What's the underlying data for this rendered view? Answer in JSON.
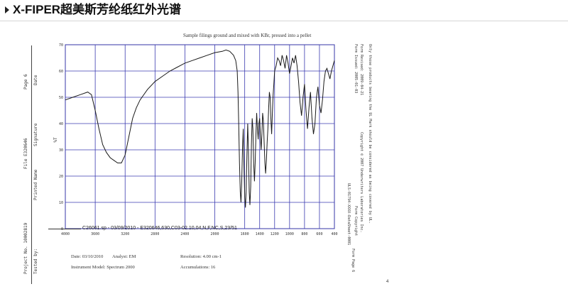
{
  "header": {
    "title": "X-FIPER超美斯芳纶纸红外光谱"
  },
  "doc": {
    "left_labels": {
      "page": "Page 6",
      "date": "Date",
      "file": "File E320646",
      "signature": "Signature",
      "printed_name": "Printed Name",
      "project_no": "Project No. 10002819",
      "tested_by": "Tested by:"
    },
    "right_labels": {
      "form_issued": "Form Issued: 2005-01-03",
      "form_revised": "Form Revised: 2009-04-21",
      "copyright": "Copyright © 2007 Underwriters Laboratories Inc.",
      "form_copyright": "Form Copyright",
      "form_code": "ULS-01794-XXXX-DataSheet-0001",
      "form_page": "Form Page 6",
      "note": "Only those products bearing the UL Mark should be considered as being covered by UL."
    },
    "legend": "C26061.sp - 03/09/2010 - E320646,630,C03-02.10,04,N,F,NC,S,23/51",
    "info": {
      "date": "Date: 03/10/2010",
      "analyst": "Analyst: EM",
      "resolution": "Resolution: 4.00 cm-1",
      "instrument": "Instrument Model: Spectrum 2000",
      "accumulations": "Accumulations: 16"
    },
    "ylabel": "%T",
    "page_mark": "4"
  },
  "chart_data": {
    "type": "line",
    "title": "Sample filings ground and mixed with KBr, pressed into a pellet",
    "xlabel": "",
    "ylabel": "%T",
    "xlim": [
      4000,
      400
    ],
    "ylim": [
      0,
      70
    ],
    "x_ticks": [
      4000,
      3600,
      3200,
      2800,
      2400,
      2000,
      1600,
      1400,
      1200,
      1000,
      800,
      600,
      400
    ],
    "y_ticks": [
      0,
      10,
      20,
      30,
      40,
      50,
      60,
      70
    ],
    "grid": true,
    "series": [
      {
        "name": "C26061.sp - 03/09/2010 - E320646,630,C03-02.10,04,N,F,NC,S,23/51",
        "x": [
          4000,
          3900,
          3800,
          3700,
          3650,
          3600,
          3550,
          3500,
          3450,
          3400,
          3350,
          3300,
          3250,
          3200,
          3150,
          3100,
          3050,
          3000,
          2900,
          2800,
          2700,
          2600,
          2500,
          2400,
          2300,
          2200,
          2100,
          2000,
          1900,
          1850,
          1800,
          1750,
          1720,
          1700,
          1690,
          1680,
          1670,
          1660,
          1650,
          1640,
          1630,
          1620,
          1610,
          1600,
          1590,
          1580,
          1570,
          1560,
          1550,
          1540,
          1530,
          1520,
          1510,
          1500,
          1490,
          1480,
          1470,
          1460,
          1450,
          1440,
          1430,
          1420,
          1410,
          1400,
          1390,
          1380,
          1370,
          1360,
          1350,
          1340,
          1330,
          1320,
          1310,
          1300,
          1290,
          1280,
          1270,
          1260,
          1250,
          1240,
          1230,
          1220,
          1210,
          1200,
          1180,
          1160,
          1140,
          1120,
          1100,
          1080,
          1060,
          1040,
          1020,
          1000,
          980,
          960,
          940,
          920,
          900,
          880,
          860,
          840,
          820,
          800,
          780,
          760,
          740,
          720,
          700,
          680,
          660,
          640,
          620,
          600,
          580,
          560,
          540,
          520,
          500,
          480,
          460,
          440,
          420,
          400
        ],
        "y": [
          49,
          50,
          51,
          52,
          51,
          45,
          38,
          32,
          29,
          27,
          26,
          25,
          25,
          28,
          35,
          42,
          46,
          49,
          53,
          56,
          58,
          60,
          61.5,
          63,
          64,
          65,
          66,
          67,
          67.5,
          68,
          67.5,
          66,
          64,
          60,
          52,
          40,
          25,
          14,
          10,
          18,
          30,
          38,
          24,
          12,
          8,
          15,
          28,
          40,
          30,
          14,
          9,
          16,
          32,
          42,
          38,
          25,
          18,
          25,
          36,
          44,
          38,
          34,
          40,
          42,
          35,
          30,
          36,
          44,
          41,
          33,
          25,
          21,
          26,
          33,
          38,
          46,
          52,
          50,
          42,
          36,
          44,
          51,
          55,
          60,
          62,
          65,
          64,
          62,
          66,
          64,
          61,
          66,
          63,
          59,
          62,
          65,
          63,
          66,
          62,
          56,
          48,
          43,
          50,
          55,
          45,
          38,
          46,
          52,
          42,
          36,
          40,
          50,
          54,
          47,
          44,
          49,
          56,
          60,
          61,
          59,
          57,
          60,
          62,
          64
        ]
      }
    ]
  }
}
